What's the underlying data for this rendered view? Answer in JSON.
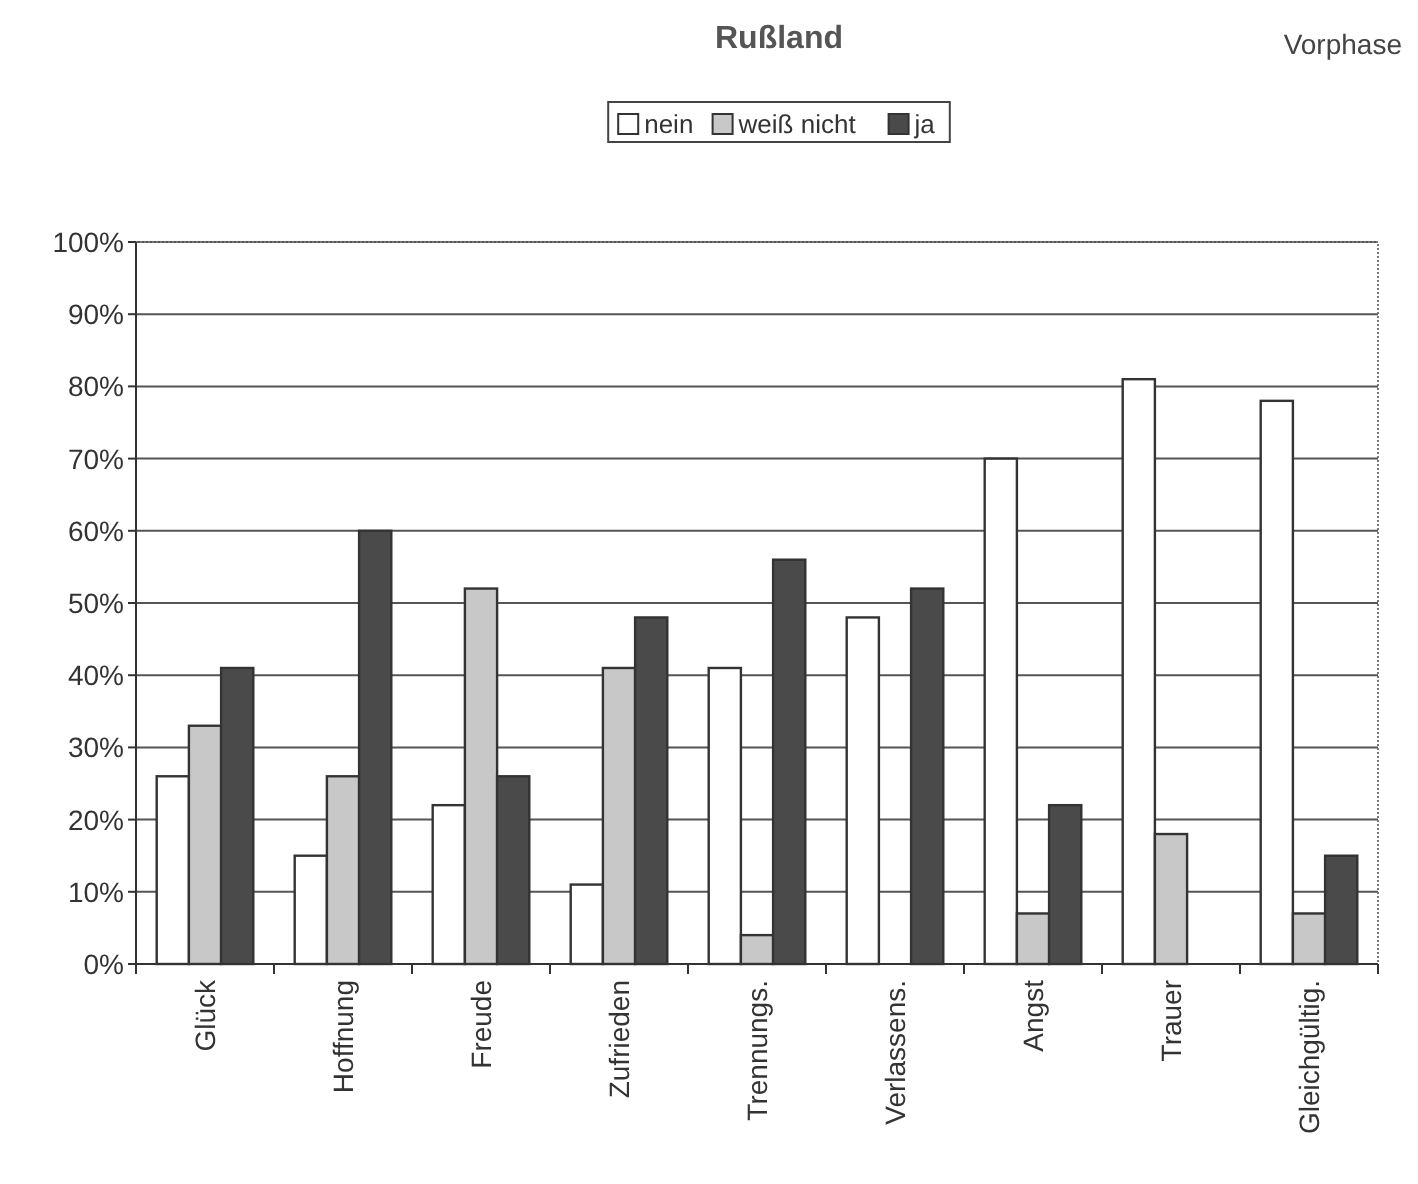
{
  "chart_data": {
    "type": "bar",
    "title": "Rußland",
    "subtitle": "Vorphase",
    "categories": [
      "Glück",
      "Hoffnung",
      "Freude",
      "Zufrieden",
      "Trennungs.",
      "Verlassens.",
      "Angst",
      "Trauer",
      "Gleichgültig."
    ],
    "series": [
      {
        "name": "nein",
        "color": "#ffffff",
        "values": [
          26,
          15,
          22,
          11,
          41,
          48,
          70,
          81,
          78
        ]
      },
      {
        "name": "weiß nicht",
        "color": "#c8c8c8",
        "values": [
          33,
          26,
          52,
          41,
          4,
          0,
          7,
          18,
          7
        ]
      },
      {
        "name": "ja",
        "color": "#4a4a4a",
        "values": [
          41,
          60,
          26,
          48,
          56,
          52,
          22,
          0,
          15
        ]
      }
    ],
    "ylim": [
      0,
      100
    ],
    "yticks": [
      {
        "value": 0,
        "label": "0%"
      },
      {
        "value": 10,
        "label": "10%"
      },
      {
        "value": 20,
        "label": "20%"
      },
      {
        "value": 30,
        "label": "30%"
      },
      {
        "value": 40,
        "label": "40%"
      },
      {
        "value": 50,
        "label": "50%"
      },
      {
        "value": 60,
        "label": "60%"
      },
      {
        "value": 70,
        "label": "70%"
      },
      {
        "value": 80,
        "label": "80%"
      },
      {
        "value": 90,
        "label": "90%"
      },
      {
        "value": 100,
        "label": "100%"
      }
    ],
    "grid": "y",
    "legend": "top"
  }
}
